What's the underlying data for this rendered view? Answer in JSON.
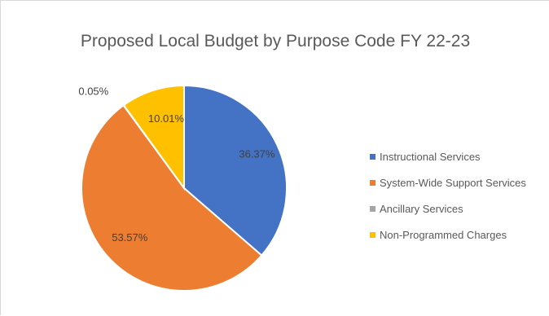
{
  "chart_data": {
    "type": "pie",
    "title": "Proposed Local Budget by Purpose Code FY 22-23",
    "categories": [
      "Instructional Services",
      "System-Wide Support Services",
      "Ancillary Services",
      "Non-Programmed Charges"
    ],
    "values": [
      36.37,
      53.57,
      0.05,
      10.01
    ],
    "value_labels": [
      "36.37%",
      "53.57%",
      "0.05%",
      "10.01%"
    ],
    "colors": [
      "#4472c4",
      "#ed7d31",
      "#a5a5a5",
      "#ffc000"
    ],
    "legend_position": "right",
    "grid": false
  }
}
